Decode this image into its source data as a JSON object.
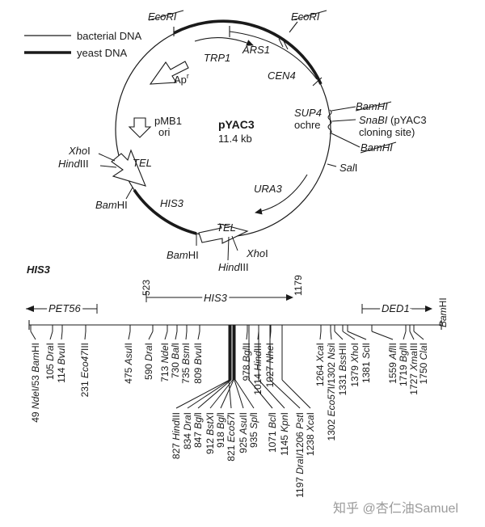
{
  "legend": {
    "bacterial": "bacterial DNA",
    "yeast": "yeast DNA"
  },
  "plasmid": {
    "name": "pYAC3",
    "size": "11.4 kb"
  },
  "map_labels": {
    "ecori_left": "EcoRI",
    "ecori_right": "EcoRI",
    "trp1": "TRP1",
    "ars1": "ARS1",
    "cen4": "CEN4",
    "apr": "Ap",
    "apr_sup": "r",
    "pmb1": "pMB1",
    "ori": "ori",
    "sup4": "SUP4",
    "ochre": "ochre",
    "bamhi_top": "BamHI",
    "snabi_1": "SnaBI",
    "snabi_2": " (pYAC3",
    "snabi_3": "cloning site)",
    "bamhi_bottom": "BamHI",
    "sali": "SalI",
    "xhoi_left": "XhoI",
    "hindiii_left": "HindIII",
    "tel_left": "TEL",
    "bamhi_left": "BamHI",
    "his3": "HIS3",
    "ura3": "URA3",
    "tel_bottom": "TEL",
    "bamhi_bottom_left": "BamHI",
    "xhoi_bottom": "XhoI",
    "hindiii_bottom": "HindIII"
  },
  "his3_map": {
    "title": "HIS3",
    "gene": "HIS3",
    "start": "523",
    "end": "1179",
    "pet56": "PET56",
    "ded1": "DED1",
    "right_end": "BamHI",
    "upper_sites": [
      {
        "pos": "49",
        "parts": [
          [
            "Nde",
            "i"
          ],
          [
            "I/53 ",
            ""
          ],
          [
            "Bam",
            "i"
          ],
          [
            "HI",
            ""
          ]
        ]
      },
      {
        "pos": "105",
        "parts": [
          [
            "Dra",
            "i"
          ],
          [
            "I",
            ""
          ]
        ]
      },
      {
        "pos": "114",
        "parts": [
          [
            "Bvu",
            "i"
          ],
          [
            "II",
            ""
          ]
        ]
      },
      {
        "pos": "231",
        "parts": [
          [
            "Eco47",
            "i"
          ],
          [
            "III",
            ""
          ]
        ]
      },
      {
        "pos": "475",
        "parts": [
          [
            "Asu",
            "i"
          ],
          [
            "II",
            ""
          ]
        ]
      },
      {
        "pos": "590",
        "parts": [
          [
            "Dra",
            "i"
          ],
          [
            "I",
            ""
          ]
        ]
      },
      {
        "pos": "713",
        "parts": [
          [
            "Nde",
            "i"
          ],
          [
            "I",
            ""
          ]
        ]
      },
      {
        "pos": "730",
        "parts": [
          [
            "Bal",
            "i"
          ],
          [
            "I",
            ""
          ]
        ]
      },
      {
        "pos": "735",
        "parts": [
          [
            "Bsm",
            "i"
          ],
          [
            "I",
            ""
          ]
        ]
      },
      {
        "pos": "809",
        "parts": [
          [
            "Bvu",
            "i"
          ],
          [
            "II",
            ""
          ]
        ]
      },
      {
        "pos": "978",
        "parts": [
          [
            "Bgl",
            "i"
          ],
          [
            "II",
            ""
          ]
        ]
      },
      {
        "pos": "1014",
        "parts": [
          [
            "Hind",
            "i"
          ],
          [
            "III",
            ""
          ]
        ]
      },
      {
        "pos": "1027",
        "parts": [
          [
            "Nhe",
            "i"
          ],
          [
            "I",
            ""
          ]
        ]
      },
      {
        "pos": "1264",
        "parts": [
          [
            "Xca",
            "i"
          ],
          [
            "I",
            ""
          ]
        ]
      },
      {
        "pos": "1302",
        "parts": [
          [
            "Eco57",
            "i"
          ],
          [
            "I/1302 ",
            ""
          ],
          [
            "Nsi",
            "i"
          ],
          [
            "I",
            ""
          ]
        ]
      },
      {
        "pos": "1331",
        "parts": [
          [
            "Bss",
            "i"
          ],
          [
            "HII",
            ""
          ]
        ]
      },
      {
        "pos": "1379",
        "parts": [
          [
            "Xho",
            "i"
          ],
          [
            "I",
            ""
          ]
        ]
      },
      {
        "pos": "1381",
        "parts": [
          [
            "Sc",
            "i"
          ],
          [
            "lI",
            ""
          ]
        ]
      },
      {
        "pos": "1559",
        "parts": [
          [
            "Afl",
            "i"
          ],
          [
            "II",
            ""
          ]
        ]
      },
      {
        "pos": "1719",
        "parts": [
          [
            "Bgl",
            "i"
          ],
          [
            "II",
            ""
          ]
        ]
      },
      {
        "pos": "1727",
        "parts": [
          [
            "Xma",
            "i"
          ],
          [
            "III",
            ""
          ]
        ]
      },
      {
        "pos": "1750",
        "parts": [
          [
            "Cla",
            "i"
          ],
          [
            "I",
            ""
          ]
        ]
      }
    ],
    "lower_sites": [
      {
        "pos": "827",
        "parts": [
          [
            "Hind",
            "i"
          ],
          [
            "III",
            ""
          ]
        ]
      },
      {
        "pos": "834",
        "parts": [
          [
            "Dra",
            "i"
          ],
          [
            "I",
            ""
          ]
        ]
      },
      {
        "pos": "847",
        "parts": [
          [
            "Bgl",
            "i"
          ],
          [
            "I",
            ""
          ]
        ]
      },
      {
        "pos": "912",
        "parts": [
          [
            "BstX",
            "i"
          ],
          [
            "I",
            ""
          ]
        ]
      },
      {
        "pos": "918",
        "parts": [
          [
            "Bgl",
            "i"
          ],
          [
            "I",
            ""
          ]
        ]
      },
      {
        "pos": "821",
        "parts": [
          [
            "Eco57",
            "i"
          ],
          [
            "I",
            ""
          ]
        ]
      },
      {
        "pos": "925",
        "parts": [
          [
            "Asu",
            "i"
          ],
          [
            "II",
            ""
          ]
        ]
      },
      {
        "pos": "935",
        "parts": [
          [
            "Spl",
            "i"
          ],
          [
            "I",
            ""
          ]
        ]
      },
      {
        "pos": "1071",
        "parts": [
          [
            "Bcl",
            "i"
          ],
          [
            "I",
            ""
          ]
        ]
      },
      {
        "pos": "1145",
        "parts": [
          [
            "Kpn",
            "i"
          ],
          [
            "I",
            ""
          ]
        ]
      },
      {
        "pos": "1197",
        "parts": [
          [
            "Dra",
            "i"
          ],
          [
            "I/1206 ",
            ""
          ],
          [
            "Pst",
            "i"
          ],
          [
            "I",
            ""
          ]
        ]
      },
      {
        "pos": "1238",
        "parts": [
          [
            "Xca",
            "i"
          ],
          [
            "I",
            ""
          ]
        ]
      }
    ]
  },
  "watermark": "知乎 @杏仁油Samuel"
}
